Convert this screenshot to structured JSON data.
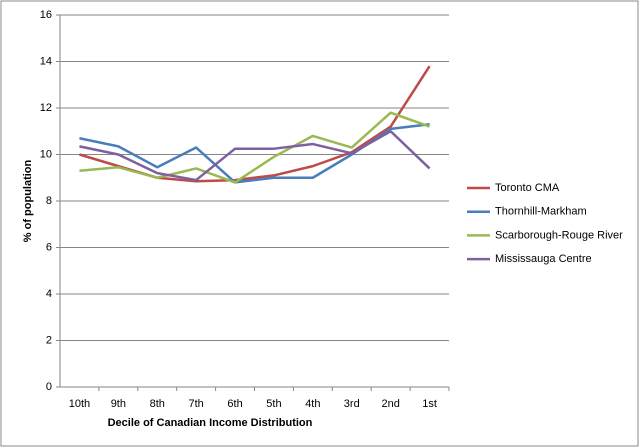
{
  "chart_data": {
    "type": "line",
    "x_label": "Decile of Canadian Income Distribution",
    "y_label": "% of population",
    "categories": [
      "10th",
      "9th",
      "8th",
      "7th",
      "6th",
      "5th",
      "4th",
      "3rd",
      "2nd",
      "1st"
    ],
    "series": [
      {
        "name": "Toronto CMA",
        "color": "#be4b48",
        "values": [
          10.0,
          9.5,
          9.0,
          8.85,
          8.9,
          9.1,
          9.5,
          10.1,
          11.2,
          13.8
        ]
      },
      {
        "name": "Thornhill-Markham",
        "color": "#4a7ebb",
        "values": [
          10.7,
          10.35,
          9.45,
          10.3,
          8.8,
          9.0,
          9.0,
          10.0,
          11.1,
          11.3
        ]
      },
      {
        "name": "Scarborough-Rouge River",
        "color": "#98b954",
        "values": [
          9.3,
          9.45,
          9.0,
          9.4,
          8.8,
          9.9,
          10.8,
          10.3,
          11.8,
          11.2
        ]
      },
      {
        "name": "Mississauga Centre",
        "color": "#7d60a0",
        "values": [
          10.35,
          10.0,
          9.2,
          8.9,
          10.25,
          10.25,
          10.45,
          10.05,
          11.0,
          9.4
        ]
      }
    ],
    "ylim": [
      0,
      16
    ],
    "yticks": [
      0,
      2,
      4,
      6,
      8,
      10,
      12,
      14,
      16
    ],
    "grid": true,
    "legend": "right"
  }
}
